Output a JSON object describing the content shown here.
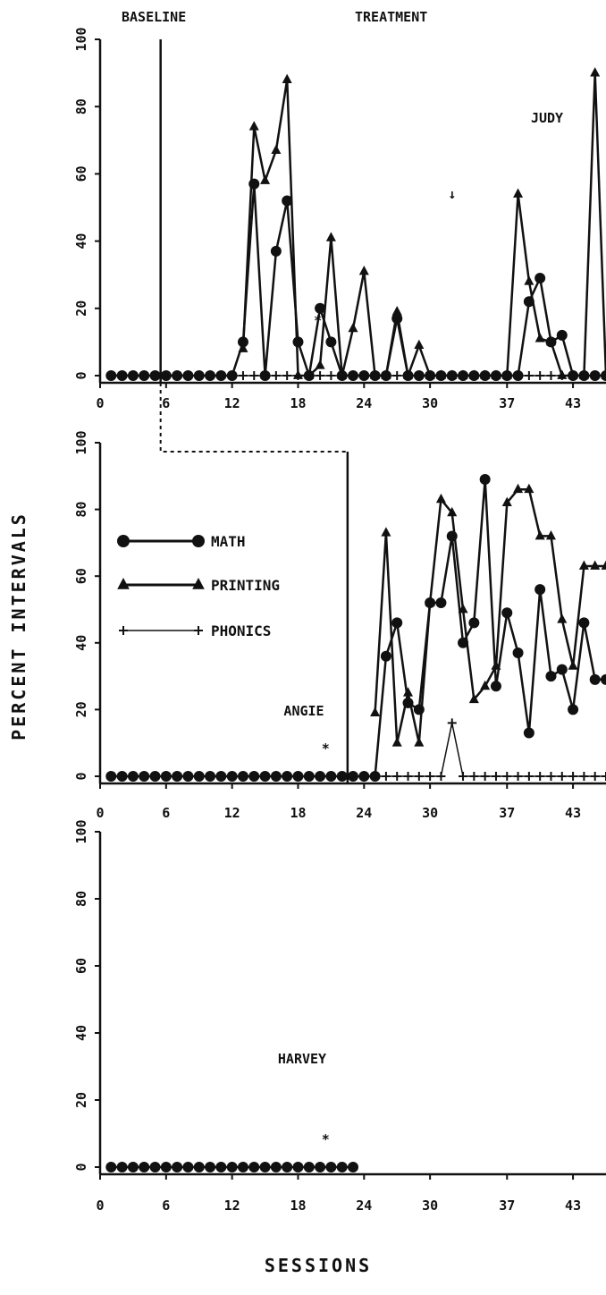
{
  "chart_data": {
    "type": "line",
    "phase_labels": [
      "BASELINE",
      "TREATMENT"
    ],
    "ylabel": "PERCENT INTERVALS",
    "xlabel": "SESSIONS",
    "x_ticks": [
      0,
      6,
      12,
      18,
      24,
      30,
      37,
      43
    ],
    "y_ticks": [
      0,
      20,
      40,
      60,
      80,
      100
    ],
    "ylim": [
      0,
      100
    ],
    "xlim": [
      0,
      46
    ],
    "legend": [
      {
        "name": "MATH",
        "marker": "circle"
      },
      {
        "name": "PRINTING",
        "marker": "triangle"
      },
      {
        "name": "PHONICS",
        "marker": "plus"
      }
    ],
    "arrow_symbol": "↓",
    "asterisk_symbol": "*",
    "panels": [
      {
        "name": "JUDY",
        "phase_change_x": 5.5,
        "arrow_at_x": 32,
        "asterisk": {
          "x": 19.8,
          "y": 15
        },
        "series": [
          {
            "name": "MATH",
            "x": [
              1,
              2,
              3,
              4,
              5,
              6,
              7,
              8,
              9,
              10,
              11,
              12,
              13,
              14,
              15,
              16,
              17,
              18,
              19,
              20,
              21,
              22,
              23,
              24,
              25,
              26,
              27,
              28,
              29,
              30,
              31,
              32,
              33,
              34,
              35,
              36,
              37,
              38,
              39,
              40,
              41,
              42,
              43,
              44,
              45,
              46
            ],
            "y": [
              0,
              0,
              0,
              0,
              0,
              0,
              0,
              0,
              0,
              0,
              0,
              0,
              10,
              57,
              0,
              37,
              52,
              10,
              0,
              20,
              10,
              0,
              0,
              0,
              0,
              0,
              17,
              0,
              0,
              0,
              0,
              0,
              0,
              0,
              0,
              0,
              0,
              0,
              22,
              29,
              10,
              12,
              0,
              0,
              0,
              0
            ]
          },
          {
            "name": "PRINTING",
            "x": [
              13,
              14,
              15,
              16,
              17,
              18,
              19,
              20,
              21,
              22,
              23,
              24,
              25,
              26,
              27,
              28,
              29,
              30,
              31,
              32,
              33,
              34,
              35,
              36,
              37,
              38,
              39,
              40,
              41,
              42,
              43,
              44,
              45,
              46
            ],
            "y": [
              8,
              74,
              58,
              67,
              88,
              0,
              0,
              3,
              41,
              0,
              14,
              31,
              0,
              0,
              19,
              0,
              9,
              0,
              0,
              0,
              0,
              0,
              0,
              0,
              0,
              54,
              28,
              11,
              10,
              0,
              0,
              0,
              90,
              0
            ]
          },
          {
            "name": "PHONICS",
            "x": [
              8,
              9,
              10,
              11,
              12,
              13,
              14,
              15,
              16,
              17,
              18,
              19,
              20,
              21,
              22,
              23,
              24,
              25,
              26,
              27,
              28,
              29,
              30,
              31,
              32,
              33,
              34,
              35,
              36,
              37,
              38,
              39,
              40,
              41,
              42,
              43,
              44,
              45,
              46
            ],
            "y": [
              0,
              0,
              0,
              0,
              0,
              0,
              0,
              0,
              0,
              0,
              0,
              0,
              0,
              0,
              0,
              0,
              0,
              0,
              0,
              0,
              0,
              0,
              0,
              0,
              0,
              0,
              0,
              0,
              0,
              0,
              0,
              0,
              0,
              0,
              0,
              0,
              0,
              0,
              0
            ]
          }
        ]
      },
      {
        "name": "ANGIE",
        "phase_change_x": 22.5,
        "asterisk": {
          "x": 20.5,
          "y": 7
        },
        "series": [
          {
            "name": "MATH",
            "x": [
              1,
              2,
              3,
              4,
              5,
              6,
              7,
              8,
              9,
              10,
              11,
              12,
              13,
              14,
              15,
              16,
              17,
              18,
              19,
              20,
              21,
              22,
              23,
              24,
              25,
              26,
              27,
              28,
              29,
              30,
              31,
              32,
              33,
              34,
              35,
              36,
              37,
              38,
              39,
              40,
              41,
              42,
              43,
              44,
              45,
              46
            ],
            "y": [
              0,
              0,
              0,
              0,
              0,
              0,
              0,
              0,
              0,
              0,
              0,
              0,
              0,
              0,
              0,
              0,
              0,
              0,
              0,
              0,
              0,
              0,
              0,
              0,
              0,
              36,
              46,
              22,
              20,
              52,
              52,
              72,
              40,
              46,
              89,
              27,
              49,
              37,
              13,
              56,
              30,
              32,
              20,
              46,
              29,
              29
            ]
          },
          {
            "name": "PRINTING",
            "x": [
              25,
              26,
              27,
              28,
              29,
              30,
              31,
              32,
              33,
              34,
              35,
              36,
              37,
              38,
              39,
              40,
              41,
              42,
              43,
              44,
              45,
              46
            ],
            "y": [
              19,
              73,
              10,
              25,
              10,
              52,
              83,
              79,
              50,
              23,
              27,
              33,
              82,
              86,
              86,
              72,
              72,
              47,
              33,
              63,
              63,
              63
            ]
          },
          {
            "name": "PHONICS",
            "x": [
              22,
              23,
              24,
              25,
              26,
              27,
              28,
              29,
              30,
              31,
              32,
              33,
              34,
              35,
              36,
              37,
              38,
              39,
              40,
              41,
              42,
              43,
              44,
              45,
              46
            ],
            "y": [
              0,
              0,
              0,
              0,
              0,
              0,
              0,
              0,
              0,
              0,
              16,
              0,
              0,
              0,
              0,
              0,
              0,
              0,
              0,
              0,
              0,
              0,
              0,
              0,
              0
            ]
          }
        ]
      },
      {
        "name": "HARVEY",
        "asterisk": {
          "x": 20.5,
          "y": 7
        },
        "series": [
          {
            "name": "MATH",
            "x": [
              1,
              2,
              3,
              4,
              5,
              6,
              7,
              8,
              9,
              10,
              11,
              12,
              13,
              14,
              15,
              16,
              17,
              18,
              19,
              20,
              21,
              22,
              23
            ],
            "y": [
              0,
              0,
              0,
              0,
              0,
              0,
              0,
              0,
              0,
              0,
              0,
              0,
              0,
              0,
              0,
              0,
              0,
              0,
              0,
              0,
              0,
              0,
              0
            ]
          }
        ]
      }
    ]
  }
}
